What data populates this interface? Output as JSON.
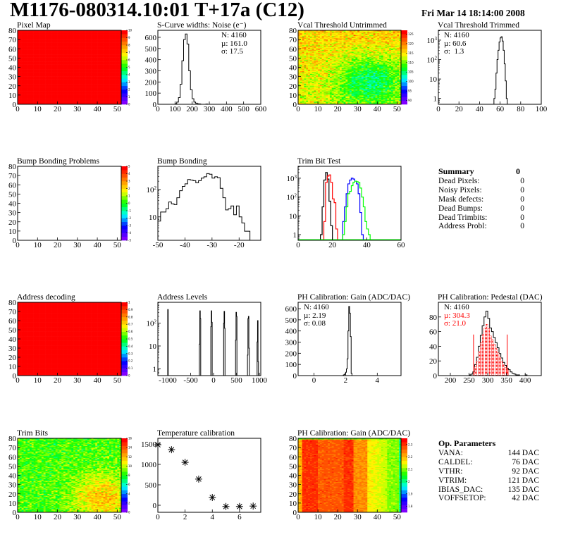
{
  "header": {
    "title": "M1176-080314.10:01 T+17a (C12)",
    "date": "Fri Mar 14 18:14:00 2008"
  },
  "palette_colors": [
    "#8000ff",
    "#0000ff",
    "#00ffff",
    "#00ff00",
    "#ffff00",
    "#ff8000",
    "#ff0000"
  ],
  "summary": {
    "title": "Summary",
    "total": "0",
    "rows": [
      {
        "label": "Dead Pixels:",
        "value": "0"
      },
      {
        "label": "Noisy Pixels:",
        "value": "0"
      },
      {
        "label": "Mask defects:",
        "value": "0"
      },
      {
        "label": "Dead Bumps:",
        "value": "0"
      },
      {
        "label": "Dead Trimbits:",
        "value": "0"
      },
      {
        "label": "Address Probl:",
        "value": "0"
      }
    ]
  },
  "op_params": {
    "title": "Op. Parameters",
    "rows": [
      {
        "label": "VANA:",
        "value": "144 DAC"
      },
      {
        "label": "CALDEL:",
        "value": "76 DAC"
      },
      {
        "label": "VTHR:",
        "value": "92 DAC"
      },
      {
        "label": "VTRIM:",
        "value": "121 DAC"
      },
      {
        "label": "IBIAS_DAC:",
        "value": "135 DAC"
      },
      {
        "label": "VOFFSETOP:",
        "value": "42 DAC"
      }
    ]
  },
  "chart_data": [
    {
      "id": "pixel_map",
      "type": "heatmap",
      "title": "Pixel Map",
      "xlim": [
        0,
        52
      ],
      "ylim": [
        0,
        80
      ],
      "xticks": [
        0,
        10,
        20,
        30,
        40,
        50
      ],
      "yticks": [
        0,
        10,
        20,
        30,
        40,
        50,
        60,
        70,
        80
      ],
      "zlim": [
        0,
        10
      ],
      "zticks": [
        0,
        1,
        2,
        3,
        4,
        5,
        6,
        7,
        8,
        9,
        10
      ],
      "pattern": "uniform",
      "uniform_value": 10
    },
    {
      "id": "scurve",
      "type": "bar",
      "title": "S-Curve widths: Noise (e⁻)",
      "xlim": [
        0,
        600
      ],
      "ylim": [
        0,
        663
      ],
      "xticks": [
        0,
        100,
        200,
        300,
        400,
        500,
        600
      ],
      "yticks": [
        0,
        100,
        200,
        300,
        400,
        500,
        600
      ],
      "bin_width": 10,
      "series": [
        {
          "color": "#000000",
          "x": [
            100,
            110,
            120,
            130,
            140,
            150,
            160,
            170,
            180,
            190,
            200,
            210,
            220,
            230,
            240,
            280
          ],
          "y": [
            5,
            20,
            60,
            180,
            390,
            580,
            630,
            540,
            300,
            130,
            50,
            20,
            10,
            5,
            3,
            2
          ]
        }
      ],
      "stats": {
        "N": "N: 4160",
        "mu": "µ: 161.0",
        "sigma": "σ: 17.5"
      }
    },
    {
      "id": "vcal_untrimmed",
      "type": "heatmap",
      "title": "Vcal Threshold Untrimmed",
      "xlim": [
        0,
        52
      ],
      "ylim": [
        0,
        80
      ],
      "xticks": [
        0,
        10,
        20,
        30,
        40,
        50
      ],
      "yticks": [
        0,
        10,
        20,
        30,
        40,
        50,
        60,
        70,
        80
      ],
      "zlim": [
        88,
        127
      ],
      "zticks": [
        90,
        95,
        100,
        105,
        110,
        115,
        120,
        125
      ],
      "pattern": "vcal"
    },
    {
      "id": "vcal_trimmed",
      "type": "bar",
      "title": "Vcal Threshold Trimmed",
      "log_y": true,
      "xlim": [
        0,
        100
      ],
      "ylim": [
        0.5,
        3200
      ],
      "xticks": [
        0,
        20,
        40,
        60,
        80,
        100
      ],
      "yticks": [
        1,
        10,
        100,
        1000
      ],
      "bin_width": 1,
      "series": [
        {
          "color": "#000000",
          "x": [
            54,
            55,
            56,
            57,
            58,
            59,
            60,
            61,
            62,
            63,
            64,
            65,
            66
          ],
          "y": [
            1,
            3,
            20,
            100,
            300,
            800,
            1300,
            1500,
            900,
            300,
            60,
            8,
            1
          ]
        }
      ],
      "stats": {
        "N": "N: 4160",
        "mu": "µ: 60.6",
        "sigma": "σ:  1.3"
      }
    },
    {
      "id": "bump_problems",
      "type": "heatmap",
      "title": "Bump Bonding Problems",
      "xlim": [
        0,
        52
      ],
      "ylim": [
        0,
        80
      ],
      "xticks": [
        0,
        10,
        20,
        30,
        40,
        50
      ],
      "yticks": [
        0,
        10,
        20,
        30,
        40,
        50,
        60,
        70,
        80
      ],
      "zlim": [
        -5,
        5
      ],
      "zticks": [
        -5,
        -4,
        -3,
        -2,
        -1,
        0,
        1,
        2,
        3,
        4,
        5
      ],
      "pattern": "empty"
    },
    {
      "id": "bump_bonding",
      "type": "bar",
      "title": "Bump Bonding",
      "log_y": true,
      "xlim": [
        -50,
        -12
      ],
      "ylim": [
        1.4,
        700
      ],
      "xticks": [
        -50,
        -40,
        -30,
        -20
      ],
      "yticks": [
        10,
        100
      ],
      "bin_width": 1,
      "series": [
        {
          "color": "#000000",
          "x": [
            -50,
            -49,
            -48,
            -47,
            -46,
            -45,
            -44,
            -43,
            -42,
            -41,
            -40,
            -39,
            -38,
            -37,
            -36,
            -35,
            -34,
            -33,
            -32,
            -31,
            -30,
            -29,
            -28,
            -27,
            -26,
            -25,
            -24,
            -23,
            -22,
            -21,
            -20,
            -19,
            -18,
            -17
          ],
          "y": [
            7,
            15,
            15,
            20,
            35,
            30,
            28,
            50,
            90,
            130,
            160,
            230,
            220,
            210,
            175,
            210,
            260,
            290,
            380,
            360,
            260,
            290,
            270,
            110,
            50,
            18,
            20,
            25,
            12,
            25,
            10,
            6,
            3,
            3
          ]
        }
      ]
    },
    {
      "id": "trim_bit_test",
      "type": "bar",
      "title": "Trim Bit Test",
      "log_y": true,
      "xlim": [
        0,
        60
      ],
      "ylim": [
        0.5,
        4300
      ],
      "xticks": [
        0,
        20,
        40,
        60
      ],
      "yticks": [
        1,
        10,
        100,
        1000
      ],
      "bin_width": 1,
      "series": [
        {
          "color": "#000000",
          "x": [
            13,
            14,
            15,
            16,
            17,
            18,
            19
          ],
          "y": [
            1,
            30,
            800,
            2000,
            900,
            60,
            3
          ]
        },
        {
          "color": "#ff0000",
          "x": [
            15,
            16,
            17,
            18,
            19,
            20,
            21,
            22
          ],
          "y": [
            5,
            600,
            1300,
            1500,
            600,
            80,
            50,
            2
          ]
        },
        {
          "color": "#0000ff",
          "x": [
            26,
            27,
            28,
            29,
            30,
            31,
            32,
            33,
            34,
            35,
            36,
            37
          ],
          "y": [
            5,
            30,
            150,
            500,
            800,
            1000,
            900,
            700,
            500,
            150,
            15,
            1
          ]
        },
        {
          "color": "#00ff00",
          "x": [
            26,
            27,
            28,
            29,
            30,
            31,
            32,
            33,
            34,
            35,
            36,
            37,
            38,
            39,
            40,
            41
          ],
          "y": [
            1,
            5,
            30,
            150,
            200,
            400,
            600,
            700,
            650,
            600,
            300,
            100,
            30,
            5,
            2,
            1
          ]
        }
      ]
    },
    {
      "id": "address_decoding",
      "type": "heatmap",
      "title": "Address decoding",
      "xlim": [
        0,
        52
      ],
      "ylim": [
        0,
        80
      ],
      "xticks": [
        0,
        10,
        20,
        30,
        40,
        50
      ],
      "yticks": [
        0,
        10,
        20,
        30,
        40,
        50,
        60,
        70,
        80
      ],
      "zlim": [
        0,
        1
      ],
      "zticks": [
        0,
        0.1,
        0.2,
        0.3,
        0.4,
        0.5,
        0.6,
        0.7,
        0.8,
        0.9,
        1
      ],
      "pattern": "uniform",
      "uniform_value": 1
    },
    {
      "id": "address_levels",
      "type": "bar",
      "title": "Address Levels",
      "log_y": true,
      "xlim": [
        -1215,
        1030
      ],
      "ylim": [
        0.5,
        830
      ],
      "xticks": [
        -1000,
        -500,
        0,
        500,
        1000
      ],
      "yticks": [
        1,
        10,
        100
      ],
      "bin_width": 10,
      "series": [
        {
          "color": "#000000",
          "x": [
            -1000,
            -310,
            -300,
            -290,
            -60,
            -50,
            -40,
            220,
            230,
            240,
            480,
            490,
            500,
            740,
            750,
            760,
            770,
            950,
            960,
            970
          ],
          "y": [
            400,
            12,
            350,
            160,
            70,
            350,
            110,
            100,
            330,
            60,
            18,
            300,
            200,
            4,
            160,
            200,
            8,
            15,
            130,
            2
          ]
        }
      ]
    },
    {
      "id": "ph_gain",
      "type": "bar",
      "title": "PH Calibration: Gain (ADC/DAC)",
      "xlim": [
        -1,
        5.5
      ],
      "ylim": [
        0,
        657
      ],
      "xticks": [
        0,
        2,
        4
      ],
      "yticks": [
        0,
        100,
        200,
        300,
        400,
        500,
        600
      ],
      "bin_width": 0.05,
      "series": [
        {
          "color": "#000000",
          "x": [
            1.85,
            1.9,
            1.95,
            2.0,
            2.05,
            2.1,
            2.15,
            2.2,
            2.25,
            2.3,
            2.35
          ],
          "y": [
            5,
            10,
            15,
            30,
            60,
            150,
            400,
            620,
            560,
            350,
            20
          ]
        }
      ],
      "stats": {
        "N": "N: 4160",
        "mu": "µ: 2.19",
        "sigma": "σ: 0.08"
      }
    },
    {
      "id": "ph_pedestal",
      "type": "bar",
      "title": "PH Calibration: Pedestal (DAC)",
      "xlim": [
        168,
        443
      ],
      "ylim": [
        0,
        100
      ],
      "xticks": [
        200,
        250,
        300,
        350,
        400
      ],
      "yticks": [
        0,
        20,
        40,
        60,
        80
      ],
      "bin_width": 5,
      "series": [
        {
          "color": "#000000",
          "x": [
            250,
            255,
            260,
            265,
            270,
            275,
            280,
            285,
            290,
            295,
            300,
            305,
            310,
            315,
            320,
            325,
            330,
            335,
            340,
            345,
            350,
            355,
            360,
            365,
            370,
            375,
            380,
            400
          ],
          "y": [
            1,
            2,
            5,
            15,
            25,
            40,
            55,
            68,
            80,
            88,
            78,
            65,
            60,
            52,
            45,
            38,
            30,
            24,
            18,
            14,
            10,
            8,
            5,
            3,
            2,
            1,
            1,
            1
          ]
        },
        {
          "color": "#ff0000",
          "fill": "dots",
          "x": [
            265,
            270,
            275,
            280,
            285,
            290,
            295,
            300,
            305,
            310,
            315,
            320,
            325,
            330,
            335,
            340,
            345,
            350
          ],
          "y": [
            12,
            20,
            33,
            45,
            56,
            65,
            70,
            64,
            54,
            49,
            43,
            37,
            31,
            25,
            20,
            15,
            11,
            8
          ]
        }
      ],
      "cut_lines": {
        "color": "#ff0000",
        "x": [
          262,
          352
        ],
        "height": 56
      },
      "stats": {
        "N": "N: 4160",
        "mu": "µ: 304.3",
        "sigma": "σ: 21.0"
      }
    },
    {
      "id": "trim_bits",
      "type": "heatmap",
      "title": "Trim Bits",
      "xlim": [
        0,
        52
      ],
      "ylim": [
        0,
        80
      ],
      "xticks": [
        0,
        10,
        20,
        30,
        40,
        50
      ],
      "yticks": [
        0,
        10,
        20,
        30,
        40,
        50,
        60,
        70,
        80
      ],
      "zlim": [
        0,
        16
      ],
      "zticks": [
        0,
        2,
        4,
        6,
        8,
        10,
        12,
        14,
        16
      ],
      "pattern": "trim"
    },
    {
      "id": "temperature",
      "type": "scatter",
      "title": "Temperature calibration",
      "xlim": [
        0,
        7.56
      ],
      "ylim": [
        -172,
        1638
      ],
      "xticks": [
        0,
        2,
        4,
        6
      ],
      "yticks": [
        0,
        500,
        1000,
        1500
      ],
      "marker": "star",
      "x": [
        0,
        1,
        2,
        3,
        4,
        5,
        6,
        7
      ],
      "y": [
        1480,
        1360,
        1050,
        640,
        190,
        -30,
        -30,
        -20
      ]
    },
    {
      "id": "ph_gain_map",
      "type": "heatmap",
      "title": "PH Calibration: Gain (ADC/DAC)",
      "xlim": [
        0,
        52
      ],
      "ylim": [
        0,
        80
      ],
      "xticks": [
        0,
        10,
        20,
        30,
        40,
        50
      ],
      "yticks": [
        0,
        10,
        20,
        30,
        40,
        50,
        60,
        70,
        80
      ],
      "zlim": [
        1.75,
        2.35
      ],
      "zticks": [
        1.8,
        1.9,
        2,
        2.1,
        2.2,
        2.3
      ],
      "pattern": "gain"
    }
  ]
}
